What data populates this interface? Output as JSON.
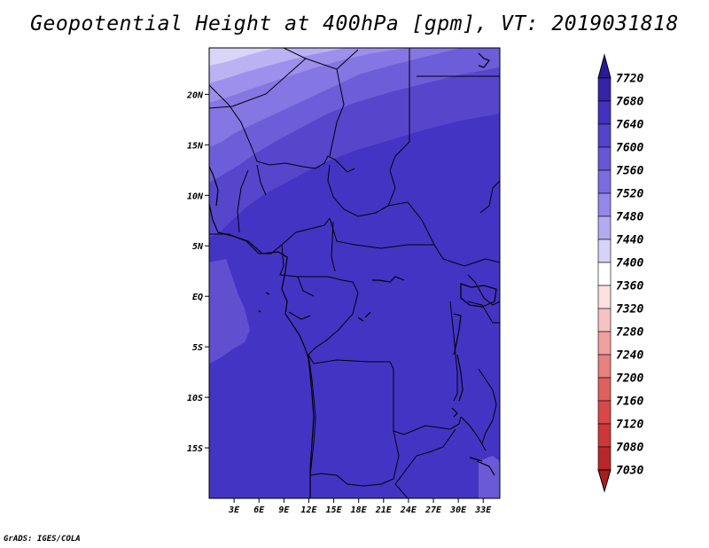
{
  "title": "Geopotential Height at 400hPa [gpm], VT: 2019031818",
  "credit": "GrADS: IGES/COLA",
  "map": {
    "lat_labels": [
      {
        "lat": 20,
        "label": "20N"
      },
      {
        "lat": 15,
        "label": "15N"
      },
      {
        "lat": 10,
        "label": "10N"
      },
      {
        "lat": 5,
        "label": "5N"
      },
      {
        "lat": 0,
        "label": "EQ"
      },
      {
        "lat": -5,
        "label": "5S"
      },
      {
        "lat": -10,
        "label": "10S"
      },
      {
        "lat": -15,
        "label": "15S"
      }
    ],
    "lon_labels": [
      {
        "lon": 3,
        "label": "3E"
      },
      {
        "lon": 6,
        "label": "6E"
      },
      {
        "lon": 9,
        "label": "9E"
      },
      {
        "lon": 12,
        "label": "12E"
      },
      {
        "lon": 15,
        "label": "15E"
      },
      {
        "lon": 18,
        "label": "18E"
      },
      {
        "lon": 21,
        "label": "21E"
      },
      {
        "lon": 24,
        "label": "24E"
      },
      {
        "lon": 27,
        "label": "27E"
      },
      {
        "lon": 30,
        "label": "30E"
      },
      {
        "lon": 33,
        "label": "33E"
      }
    ]
  },
  "colorbar": {
    "levels": [
      {
        "label": "7720",
        "color": "#2a1a9a"
      },
      {
        "label": "7680",
        "color": "#3524a8"
      },
      {
        "label": "7640",
        "color": "#4232bd"
      },
      {
        "label": "7600",
        "color": "#5444cc"
      },
      {
        "label": "7560",
        "color": "#6757d6"
      },
      {
        "label": "7520",
        "color": "#7b6ce0"
      },
      {
        "label": "7480",
        "color": "#9587ea"
      },
      {
        "label": "7440",
        "color": "#b3aaf1"
      },
      {
        "label": "7400",
        "color": "#d6d2f8"
      },
      {
        "label": "7360",
        "color": "#ffffff"
      },
      {
        "label": "7320",
        "color": "#fde0e0"
      },
      {
        "label": "7280",
        "color": "#f8c2c2"
      },
      {
        "label": "7240",
        "color": "#f0a0a0"
      },
      {
        "label": "7200",
        "color": "#e88080"
      },
      {
        "label": "7160",
        "color": "#e06060"
      },
      {
        "label": "7120",
        "color": "#d84848"
      },
      {
        "label": "7080",
        "color": "#cc3838"
      },
      {
        "label": "7030",
        "color": "#b82828"
      }
    ],
    "bottom_color": "#a81e1e"
  }
}
